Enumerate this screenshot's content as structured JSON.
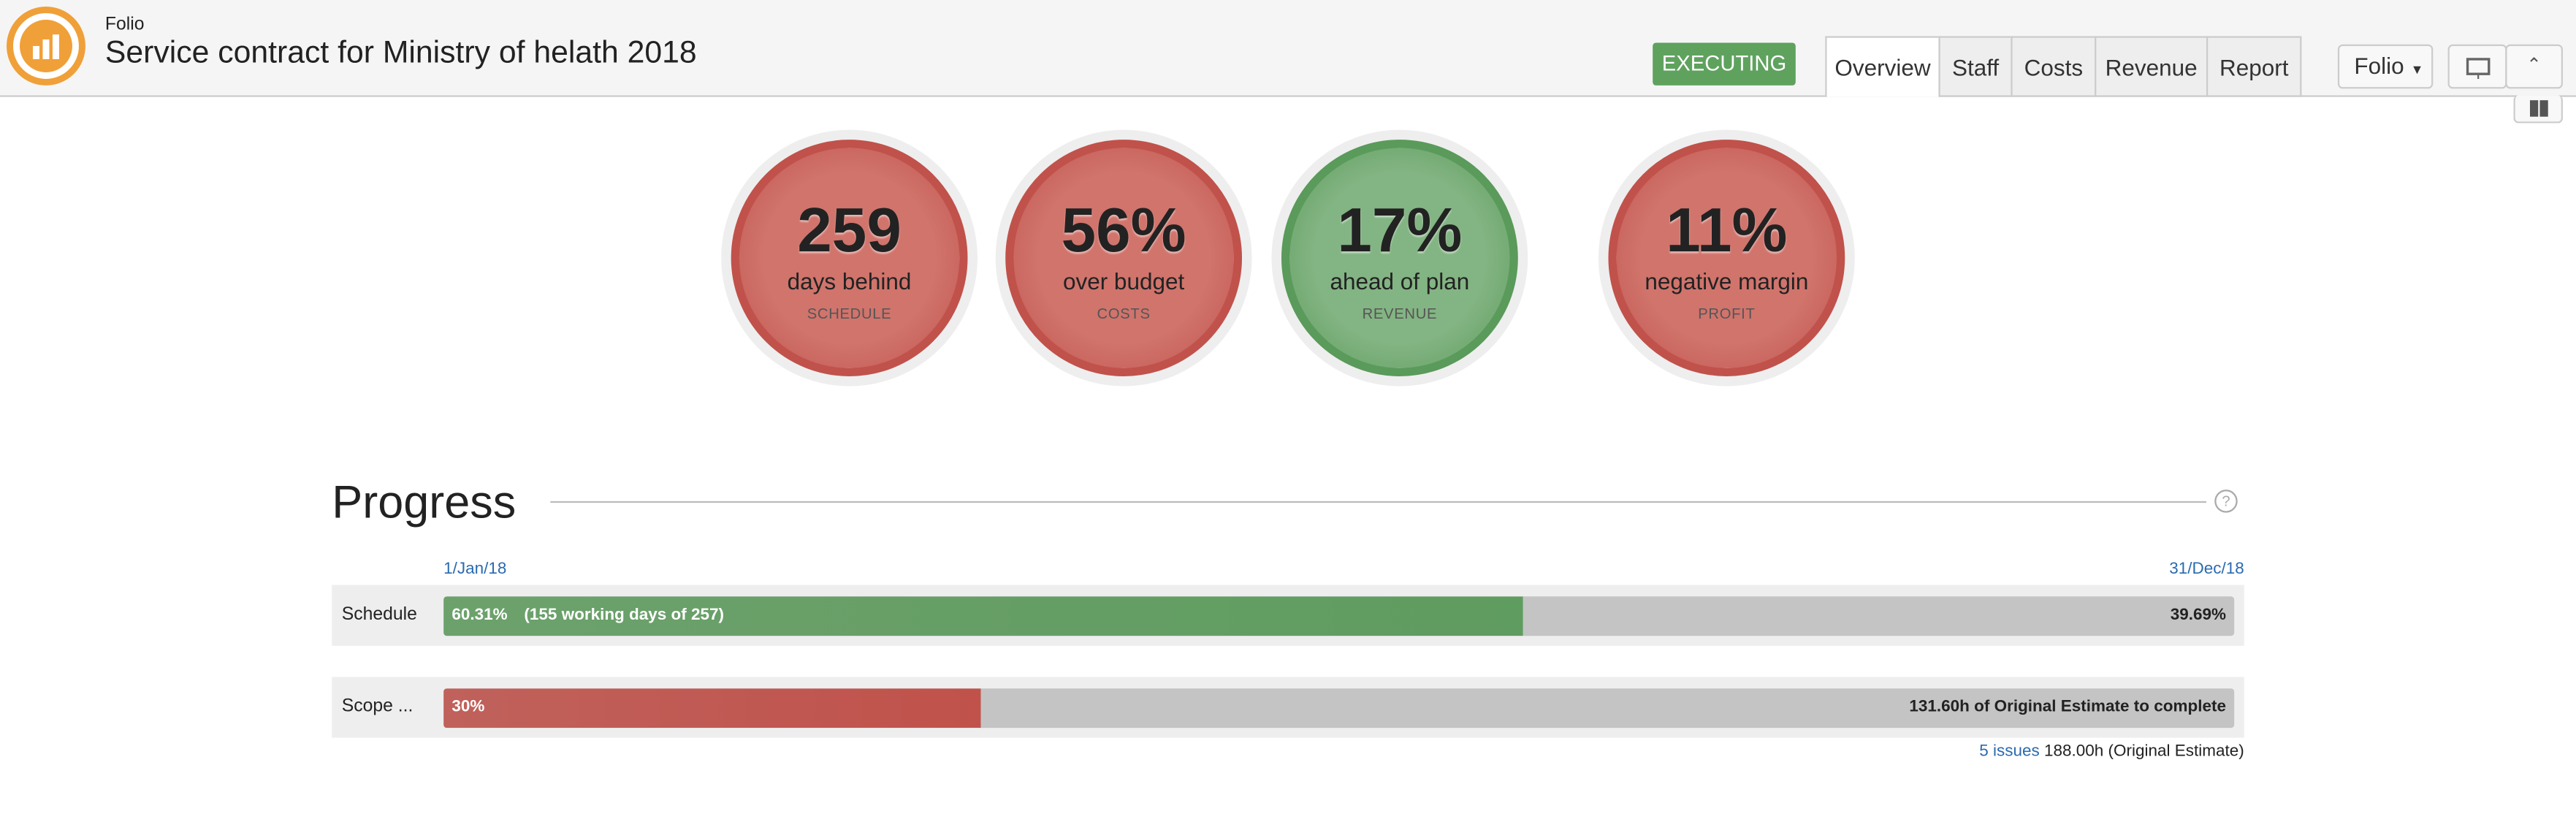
{
  "header": {
    "app": "Folio",
    "title": "Service contract for Ministry of helath 2018",
    "status": "EXECUTING",
    "tabs": [
      "Overview",
      "Staff",
      "Costs",
      "Revenue",
      "Report"
    ],
    "active_tab": "Overview",
    "menu": "Folio"
  },
  "gauges": [
    {
      "value": "259",
      "label": "days behind",
      "category": "SCHEDULE",
      "color": "#c0524b",
      "fill": "#d0746c"
    },
    {
      "value": "56%",
      "label": "over budget",
      "category": "COSTS",
      "color": "#c0524b",
      "fill": "#d0746c"
    },
    {
      "value": "17%",
      "label": "ahead of plan",
      "category": "REVENUE",
      "color": "#5a9a5a",
      "fill": "#83b483"
    },
    {
      "value": "11%",
      "label": "negative margin",
      "category": "PROFIT",
      "color": "#c0524b",
      "fill": "#d0746c"
    }
  ],
  "progress": {
    "title": "Progress",
    "start": "1/Jan/18",
    "end": "31/Dec/18",
    "rows": [
      {
        "label": "Schedule",
        "done": {
          "value": 60.31,
          "label": "60.31%"
        },
        "detail": "(155 working days of 257)",
        "remaining": "39.69%",
        "color": "#5f9c5f"
      },
      {
        "label": "Scope ...",
        "done": {
          "value": 30,
          "label": "30%"
        },
        "remaining": "131.60h of Original Estimate to complete",
        "color": "#c0524b"
      }
    ],
    "issues": "5 issues",
    "estimate": "188.00h (Original Estimate)"
  }
}
